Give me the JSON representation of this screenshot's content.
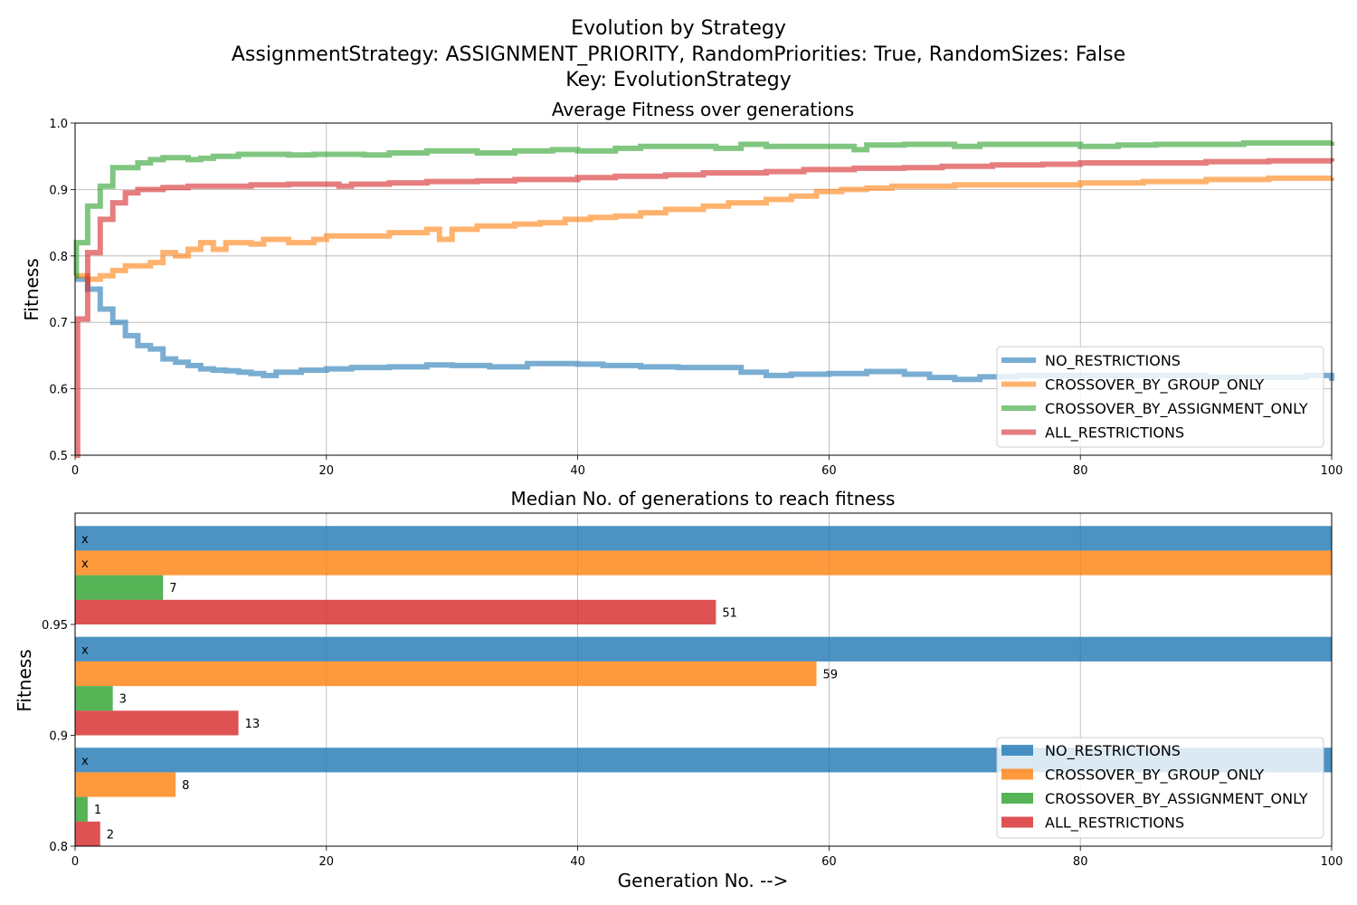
{
  "figure": {
    "title_lines": [
      "Evolution by Strategy",
      "AssignmentStrategy: ASSIGNMENT_PRIORITY, RandomPriorities: True, RandomSizes: False",
      "Key: EvolutionStrategy"
    ]
  },
  "chart_data": [
    {
      "type": "line",
      "title": "Average Fitness over generations",
      "xlabel": "",
      "ylabel": "Fitness",
      "xlim": [
        0,
        100
      ],
      "ylim": [
        0.5,
        1.0
      ],
      "x_ticks": [
        "0",
        "20",
        "40",
        "60",
        "80",
        "100"
      ],
      "y_ticks": [
        "0.5",
        "0.6",
        "0.7",
        "0.8",
        "0.9",
        "1.0"
      ],
      "grid": true,
      "legend_position": "lower right",
      "step": true,
      "series": [
        {
          "name": "NO_RESTRICTIONS",
          "color": "#1f77b4",
          "points": [
            [
              0,
              0.765
            ],
            [
              1,
              0.75
            ],
            [
              2,
              0.72
            ],
            [
              3,
              0.7
            ],
            [
              4,
              0.68
            ],
            [
              5,
              0.665
            ],
            [
              6,
              0.66
            ],
            [
              7,
              0.645
            ],
            [
              8,
              0.64
            ],
            [
              9,
              0.635
            ],
            [
              10,
              0.63
            ],
            [
              11,
              0.628
            ],
            [
              12,
              0.627
            ],
            [
              13,
              0.625
            ],
            [
              14,
              0.623
            ],
            [
              15,
              0.62
            ],
            [
              16,
              0.625
            ],
            [
              18,
              0.628
            ],
            [
              20,
              0.63
            ],
            [
              22,
              0.632
            ],
            [
              25,
              0.633
            ],
            [
              28,
              0.636
            ],
            [
              30,
              0.635
            ],
            [
              33,
              0.633
            ],
            [
              36,
              0.638
            ],
            [
              40,
              0.637
            ],
            [
              42,
              0.635
            ],
            [
              45,
              0.633
            ],
            [
              48,
              0.632
            ],
            [
              51,
              0.632
            ],
            [
              53,
              0.625
            ],
            [
              55,
              0.62
            ],
            [
              57,
              0.622
            ],
            [
              60,
              0.623
            ],
            [
              63,
              0.626
            ],
            [
              66,
              0.622
            ],
            [
              68,
              0.617
            ],
            [
              70,
              0.614
            ],
            [
              72,
              0.618
            ],
            [
              75,
              0.62
            ],
            [
              80,
              0.62
            ],
            [
              85,
              0.62
            ],
            [
              90,
              0.617
            ],
            [
              95,
              0.617
            ],
            [
              98,
              0.62
            ],
            [
              100,
              0.612
            ]
          ]
        },
        {
          "name": "CROSSOVER_BY_GROUP_ONLY",
          "color": "#ff7f0e",
          "points": [
            [
              0,
              0.77
            ],
            [
              1,
              0.765
            ],
            [
              2,
              0.77
            ],
            [
              3,
              0.778
            ],
            [
              4,
              0.785
            ],
            [
              6,
              0.79
            ],
            [
              7,
              0.805
            ],
            [
              8,
              0.8
            ],
            [
              9,
              0.81
            ],
            [
              10,
              0.82
            ],
            [
              11,
              0.81
            ],
            [
              12,
              0.82
            ],
            [
              14,
              0.818
            ],
            [
              15,
              0.825
            ],
            [
              17,
              0.82
            ],
            [
              19,
              0.825
            ],
            [
              20,
              0.83
            ],
            [
              22,
              0.83
            ],
            [
              24,
              0.83
            ],
            [
              25,
              0.835
            ],
            [
              28,
              0.84
            ],
            [
              29,
              0.825
            ],
            [
              30,
              0.84
            ],
            [
              32,
              0.845
            ],
            [
              35,
              0.848
            ],
            [
              37,
              0.85
            ],
            [
              39,
              0.855
            ],
            [
              41,
              0.858
            ],
            [
              43,
              0.86
            ],
            [
              45,
              0.865
            ],
            [
              47,
              0.87
            ],
            [
              50,
              0.875
            ],
            [
              52,
              0.88
            ],
            [
              55,
              0.885
            ],
            [
              57,
              0.89
            ],
            [
              59,
              0.897
            ],
            [
              61,
              0.9
            ],
            [
              63,
              0.902
            ],
            [
              65,
              0.905
            ],
            [
              70,
              0.907
            ],
            [
              75,
              0.907
            ],
            [
              80,
              0.91
            ],
            [
              85,
              0.912
            ],
            [
              90,
              0.915
            ],
            [
              95,
              0.917
            ],
            [
              100,
              0.918
            ]
          ]
        },
        {
          "name": "CROSSOVER_BY_ASSIGNMENT_ONLY",
          "color": "#2ca02c",
          "points": [
            [
              0,
              0.77
            ],
            [
              0.1,
              0.82
            ],
            [
              1,
              0.875
            ],
            [
              2,
              0.905
            ],
            [
              3,
              0.933
            ],
            [
              5,
              0.94
            ],
            [
              6,
              0.945
            ],
            [
              7,
              0.948
            ],
            [
              9,
              0.945
            ],
            [
              10,
              0.947
            ],
            [
              11,
              0.95
            ],
            [
              13,
              0.953
            ],
            [
              15,
              0.953
            ],
            [
              17,
              0.952
            ],
            [
              19,
              0.953
            ],
            [
              23,
              0.952
            ],
            [
              25,
              0.955
            ],
            [
              28,
              0.958
            ],
            [
              30,
              0.958
            ],
            [
              32,
              0.955
            ],
            [
              35,
              0.958
            ],
            [
              38,
              0.96
            ],
            [
              40,
              0.958
            ],
            [
              43,
              0.962
            ],
            [
              45,
              0.965
            ],
            [
              48,
              0.965
            ],
            [
              51,
              0.962
            ],
            [
              53,
              0.968
            ],
            [
              55,
              0.965
            ],
            [
              60,
              0.965
            ],
            [
              62,
              0.96
            ],
            [
              63,
              0.967
            ],
            [
              66,
              0.968
            ],
            [
              70,
              0.965
            ],
            [
              72,
              0.968
            ],
            [
              75,
              0.968
            ],
            [
              80,
              0.965
            ],
            [
              83,
              0.967
            ],
            [
              86,
              0.968
            ],
            [
              90,
              0.968
            ],
            [
              93,
              0.97
            ],
            [
              96,
              0.97
            ],
            [
              100,
              0.972
            ]
          ]
        },
        {
          "name": "ALL_RESTRICTIONS",
          "color": "#d62728",
          "points": [
            [
              0,
              0.5
            ],
            [
              0.2,
              0.705
            ],
            [
              1,
              0.805
            ],
            [
              2,
              0.855
            ],
            [
              3,
              0.88
            ],
            [
              4,
              0.895
            ],
            [
              5,
              0.9
            ],
            [
              7,
              0.903
            ],
            [
              9,
              0.905
            ],
            [
              12,
              0.905
            ],
            [
              14,
              0.907
            ],
            [
              17,
              0.908
            ],
            [
              19,
              0.908
            ],
            [
              21,
              0.905
            ],
            [
              22,
              0.908
            ],
            [
              25,
              0.91
            ],
            [
              28,
              0.912
            ],
            [
              32,
              0.913
            ],
            [
              35,
              0.915
            ],
            [
              38,
              0.915
            ],
            [
              40,
              0.918
            ],
            [
              43,
              0.92
            ],
            [
              47,
              0.922
            ],
            [
              50,
              0.925
            ],
            [
              55,
              0.927
            ],
            [
              58,
              0.93
            ],
            [
              62,
              0.932
            ],
            [
              66,
              0.933
            ],
            [
              69,
              0.935
            ],
            [
              73,
              0.937
            ],
            [
              77,
              0.938
            ],
            [
              80,
              0.94
            ],
            [
              85,
              0.94
            ],
            [
              90,
              0.942
            ],
            [
              95,
              0.943
            ],
            [
              100,
              0.942
            ]
          ]
        }
      ]
    },
    {
      "type": "bar",
      "orientation": "horizontal",
      "title": "Median No. of generations to reach fitness",
      "xlabel": "Generation No. -->",
      "ylabel": "Fitness",
      "xlim": [
        0,
        100
      ],
      "x_ticks": [
        "0",
        "20",
        "40",
        "60",
        "80",
        "100"
      ],
      "categories": [
        "0.8",
        "0.9",
        "0.95"
      ],
      "grid": true,
      "legend_position": "lower right",
      "unreached_label": "x",
      "series": [
        {
          "name": "NO_RESTRICTIONS",
          "color": "#1f77b4",
          "values": [
            null,
            null,
            null
          ],
          "labels": [
            "x",
            "x",
            "x"
          ]
        },
        {
          "name": "CROSSOVER_BY_GROUP_ONLY",
          "color": "#ff7f0e",
          "values": [
            8,
            59,
            null
          ],
          "labels": [
            "8",
            "59",
            "x"
          ]
        },
        {
          "name": "CROSSOVER_BY_ASSIGNMENT_ONLY",
          "color": "#2ca02c",
          "values": [
            1,
            3,
            7
          ],
          "labels": [
            "1",
            "3",
            "7"
          ]
        },
        {
          "name": "ALL_RESTRICTIONS",
          "color": "#d62728",
          "values": [
            2,
            13,
            51
          ],
          "labels": [
            "2",
            "13",
            "51"
          ]
        }
      ]
    }
  ]
}
